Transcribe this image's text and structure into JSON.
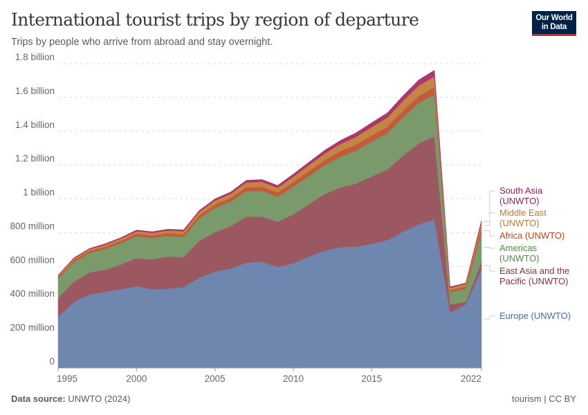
{
  "header": {
    "title": "International tourist trips by region of departure",
    "subtitle": "Trips by people who arrive from abroad and stay overnight.",
    "logo_line1": "Our World",
    "logo_line2": "in Data"
  },
  "footer": {
    "source_label": "Data source:",
    "source": "UNWTO (2024)",
    "right": "tourism | CC BY"
  },
  "chart_data": {
    "type": "area",
    "stacked": true,
    "title": "International tourist trips by region of departure",
    "subtitle": "Trips by people who arrive from abroad and stay overnight.",
    "unit": "trips",
    "x": [
      1995,
      1996,
      1997,
      1998,
      1999,
      2000,
      2001,
      2002,
      2003,
      2004,
      2005,
      2006,
      2007,
      2008,
      2009,
      2010,
      2011,
      2012,
      2013,
      2014,
      2015,
      2016,
      2017,
      2018,
      2019,
      2020,
      2021,
      2022
    ],
    "x_ticks": [
      {
        "value": 1995,
        "label": "1995"
      },
      {
        "value": 2000,
        "label": "2000"
      },
      {
        "value": 2005,
        "label": "2005"
      },
      {
        "value": 2010,
        "label": "2010"
      },
      {
        "value": 2015,
        "label": "2015"
      },
      {
        "value": 2022,
        "label": "2022"
      }
    ],
    "ylim": [
      0,
      1800000000
    ],
    "y_ticks": [
      {
        "value": 0,
        "label": "0"
      },
      {
        "value": 200000000,
        "label": "200 million"
      },
      {
        "value": 400000000,
        "label": "400 million"
      },
      {
        "value": 600000000,
        "label": "600 million"
      },
      {
        "value": 800000000,
        "label": "800 million"
      },
      {
        "value": 1000000000,
        "label": "1 billion"
      },
      {
        "value": 1200000000,
        "label": "1.2 billion"
      },
      {
        "value": 1400000000,
        "label": "1.4 billion"
      },
      {
        "value": 1600000000,
        "label": "1.6 billion"
      },
      {
        "value": 1800000000,
        "label": "1.8 billion"
      }
    ],
    "grid": "horizontal dashed",
    "legend": "right, inline labels",
    "series": [
      {
        "name": "Europe (UNWTO)",
        "label_lines": [
          "Europe (UNWTO)"
        ],
        "color": "#6f86ae",
        "label_color": "#4c6a9c",
        "values": [
          301,
          390,
          434,
          451,
          465,
          483,
          465,
          469,
          479,
          533,
          570,
          588,
          622,
          629,
          597,
          619,
          659,
          693,
          715,
          717,
          735,
          756,
          806,
          850,
          878,
          329,
          376,
          581
        ]
      },
      {
        "name": "East Asia and the Pacific (UNWTO)",
        "label_lines": [
          "East Asia and the",
          "Pacific (UNWTO)"
        ],
        "color": "#9c5861",
        "label_color": "#883039",
        "values": [
          113,
          119,
          131,
          130,
          146,
          166,
          177,
          190,
          177,
          219,
          233,
          250,
          273,
          266,
          268,
          289,
          311,
          335,
          353,
          373,
          398,
          418,
          450,
          478,
          491,
          47,
          14,
          48
        ]
      },
      {
        "name": "Americas (UNWTO)",
        "label_lines": [
          "Americas",
          "(UNWTO)"
        ],
        "color": "#7a9a6b",
        "label_color": "#4f8b3d",
        "values": [
          113,
          116,
          114,
          123,
          127,
          130,
          127,
          122,
          119,
          132,
          143,
          145,
          150,
          152,
          148,
          164,
          166,
          171,
          181,
          196,
          205,
          214,
          225,
          238,
          248,
          73,
          78,
          170
        ]
      },
      {
        "name": "Africa (UNWTO)",
        "label_lines": [
          "Africa (UNWTO)"
        ],
        "color": "#c05b3c",
        "label_color": "#b8431e",
        "values": [
          10,
          11,
          12,
          13,
          14,
          15,
          15,
          16,
          17,
          19,
          21,
          22,
          24,
          25,
          25,
          27,
          29,
          31,
          33,
          35,
          37,
          39,
          41,
          42,
          45,
          12,
          14,
          28
        ]
      },
      {
        "name": "Middle East (UNWTO)",
        "label_lines": [
          "Middle East",
          "(UNWTO)"
        ],
        "color": "#c58444",
        "label_color": "#bd7a30",
        "values": [
          9,
          10,
          11,
          12,
          13,
          15,
          15,
          16,
          17,
          20,
          23,
          25,
          28,
          29,
          28,
          32,
          35,
          38,
          42,
          46,
          50,
          54,
          58,
          62,
          62,
          13,
          16,
          32
        ]
      },
      {
        "name": "South Asia (UNWTO)",
        "label_lines": [
          "South Asia",
          "(UNWTO)"
        ],
        "color": "#a8386f",
        "label_color": "#a2185b",
        "values": [
          4,
          5,
          5,
          6,
          6,
          7,
          7,
          8,
          8,
          9,
          10,
          11,
          13,
          14,
          14,
          16,
          18,
          20,
          22,
          24,
          26,
          28,
          31,
          34,
          37,
          6,
          5,
          14
        ]
      }
    ],
    "values_unit_note": "millions"
  }
}
